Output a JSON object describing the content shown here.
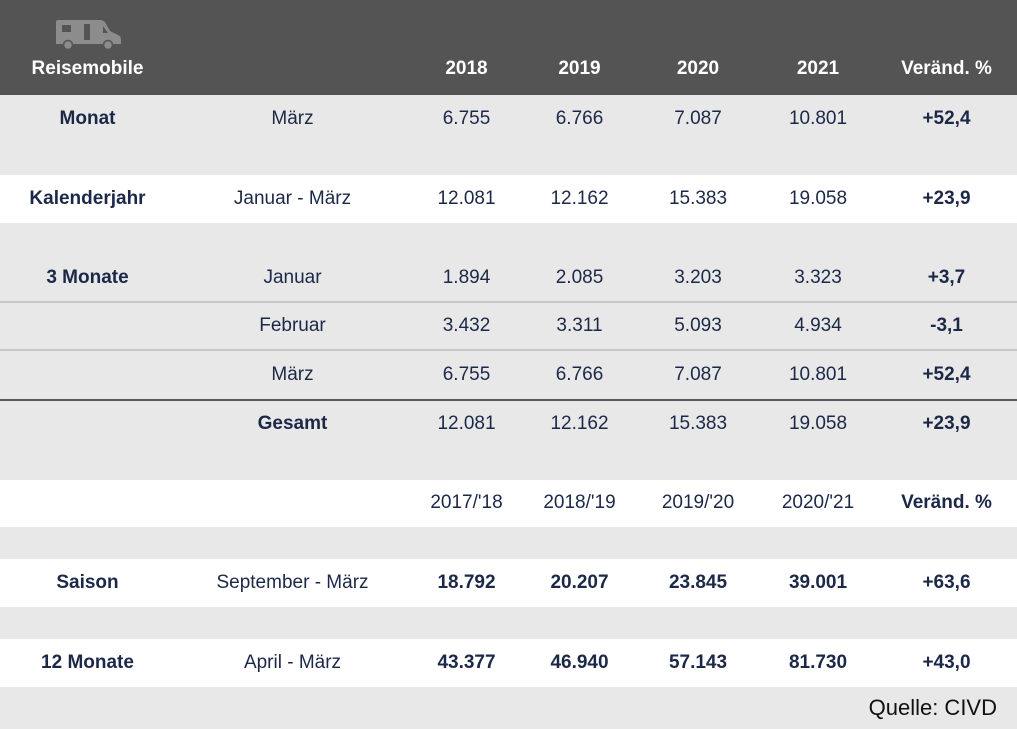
{
  "header": {
    "label": "Reisemobile",
    "years": [
      "2018",
      "2019",
      "2020",
      "2021"
    ],
    "change_label": "Veränd. %"
  },
  "rows": [
    {
      "category": "Monat",
      "period": "März",
      "values": [
        "6.755",
        "6.766",
        "7.087",
        "10.801"
      ],
      "change": "+52,4"
    },
    {
      "category": "Kalenderjahr",
      "period": "Januar - März",
      "values": [
        "12.081",
        "12.162",
        "15.383",
        "19.058"
      ],
      "change": "+23,9"
    },
    {
      "category": "3 Monate",
      "period": "Januar",
      "values": [
        "1.894",
        "2.085",
        "3.203",
        "3.323"
      ],
      "change": "+3,7"
    },
    {
      "category": "",
      "period": "Februar",
      "values": [
        "3.432",
        "3.311",
        "5.093",
        "4.934"
      ],
      "change": "-3,1"
    },
    {
      "category": "",
      "period": "März",
      "values": [
        "6.755",
        "6.766",
        "7.087",
        "10.801"
      ],
      "change": "+52,4"
    },
    {
      "category": "",
      "period": "Gesamt",
      "values": [
        "12.081",
        "12.162",
        "15.383",
        "19.058"
      ],
      "change": "+23,9"
    }
  ],
  "season_header": {
    "years": [
      "2017/'18",
      "2018/'19",
      "2019/'20",
      "2020/'21"
    ],
    "change_label": "Veränd. %"
  },
  "season_rows": [
    {
      "category": "Saison",
      "period": "September - März",
      "values": [
        "18.792",
        "20.207",
        "23.845",
        "39.001"
      ],
      "change": "+63,6"
    },
    {
      "category": "12 Monate",
      "period": "April - März",
      "values": [
        "43.377",
        "46.940",
        "57.143",
        "81.730"
      ],
      "change": "+43,0"
    }
  ],
  "source": "Quelle: CIVD",
  "icons": {
    "header": "motorhome-icon"
  },
  "colors": {
    "header_bg": "#545454",
    "text": "#1c2848",
    "band_grey": "#e8e8e8",
    "band_white": "#ffffff"
  }
}
